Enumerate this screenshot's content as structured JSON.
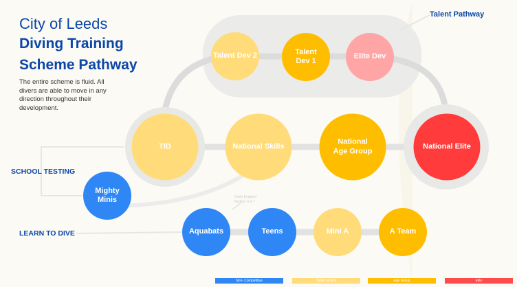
{
  "title": {
    "line1": "City of Leeds",
    "line2": "Diving Training",
    "line3": "Scheme Pathway"
  },
  "description": "The entire scheme is fluid. All divers are able to move in any direction throughout their development.",
  "labels": {
    "talent_pathway": "Talent Pathway",
    "school_testing": "SCHOOL TESTING",
    "learn_to_dive": "LEARN TO DIVE",
    "badges_line1": "Swim England",
    "badges_line2": "Badges 6 & 7"
  },
  "nodes": {
    "talent_dev_2": {
      "label": "Talent Dev 2",
      "color": "#FFDB7A"
    },
    "talent_dev_1": {
      "label": "Talent Dev 1",
      "color": "#FFBD00"
    },
    "elite_dev": {
      "label": "Elite Dev",
      "color": "#FFA5A5"
    },
    "tid": {
      "label": "TID",
      "color": "#FFDB7A"
    },
    "national_skills": {
      "label": "National Skills",
      "color": "#FFDB7A"
    },
    "national_age_group": {
      "label": "National Age Group",
      "color": "#FFBD00"
    },
    "national_elite": {
      "label": "National Elite",
      "color": "#FF3B3B"
    },
    "mighty_minis": {
      "label": "Mighty Minis",
      "color": "#2F86F5"
    },
    "aquabats": {
      "label": "Aquabats",
      "color": "#2F86F5"
    },
    "teens": {
      "label": "Teens",
      "color": "#2F86F5"
    },
    "mini_a": {
      "label": "Mini A",
      "color": "#FFDB7A"
    },
    "a_team": {
      "label": "A Team",
      "color": "#FFBD00"
    }
  },
  "legend": [
    {
      "label": "Non- Competitive",
      "color": "#2F86F5"
    },
    {
      "label": "Skills/ Novice",
      "color": "#FFDB7A"
    },
    {
      "label": "Age Group",
      "color": "#FFBD00"
    },
    {
      "label": "Elite",
      "color": "#FF4B4B"
    }
  ]
}
